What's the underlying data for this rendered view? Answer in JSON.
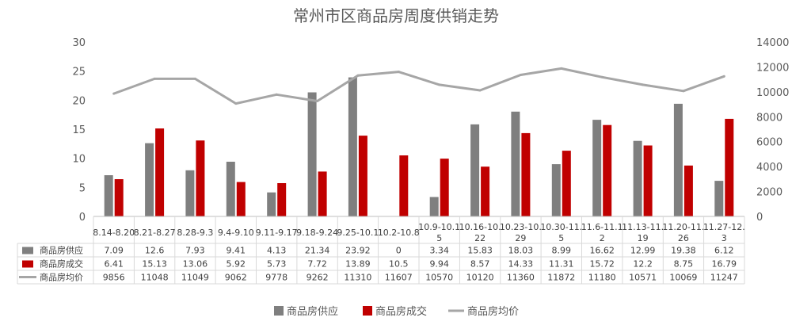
{
  "chart_data": {
    "type": "bar",
    "title": "常州市区商品房周度供销走势",
    "categories": [
      [
        "8.14-8.20"
      ],
      [
        "8.21-8.27"
      ],
      [
        "8.28-9.3"
      ],
      [
        "9.4-9.10"
      ],
      [
        "9.11-9.17"
      ],
      [
        "9.18-9.24"
      ],
      [
        "9.25-10.1"
      ],
      [
        "10.2-10.8"
      ],
      [
        "10.9-10.1",
        "5"
      ],
      [
        "10.16-10.",
        "22"
      ],
      [
        "10.23-10.",
        "29"
      ],
      [
        "10.30-11.",
        "5"
      ],
      [
        "11.6-11.1",
        "2"
      ],
      [
        "11.13-11.",
        "19"
      ],
      [
        "11.20-11.",
        "26"
      ],
      [
        "11.27-12.",
        "3"
      ]
    ],
    "series": [
      {
        "name": "商品房供应",
        "type": "bar",
        "axis": "left",
        "color": "#7f7f7f",
        "values": [
          7.09,
          12.6,
          7.93,
          9.41,
          4.13,
          21.34,
          23.92,
          0,
          3.34,
          15.83,
          18.03,
          8.99,
          16.62,
          12.99,
          19.38,
          6.12
        ]
      },
      {
        "name": "商品房成交",
        "type": "bar",
        "axis": "left",
        "color": "#c00000",
        "values": [
          6.41,
          15.13,
          13.06,
          5.92,
          5.73,
          7.72,
          13.89,
          10.5,
          9.94,
          8.57,
          14.33,
          11.31,
          15.72,
          12.2,
          8.75,
          16.79
        ]
      },
      {
        "name": "商品房均价",
        "type": "line",
        "axis": "right",
        "color": "#a6a6a6",
        "values": [
          9856,
          11048,
          11049,
          9062,
          9778,
          9262,
          11310,
          11607,
          10570,
          10120,
          11360,
          11872,
          11180,
          10571,
          10069,
          11247
        ]
      }
    ],
    "y_left": {
      "min": 0,
      "max": 30,
      "ticks": [
        0,
        5,
        10,
        15,
        20,
        25,
        30
      ]
    },
    "y_right": {
      "min": 0,
      "max": 14000,
      "ticks": [
        0,
        2000,
        4000,
        6000,
        8000,
        10000,
        12000,
        14000
      ]
    },
    "grid": false,
    "legend": "bottom",
    "data_table": true
  }
}
